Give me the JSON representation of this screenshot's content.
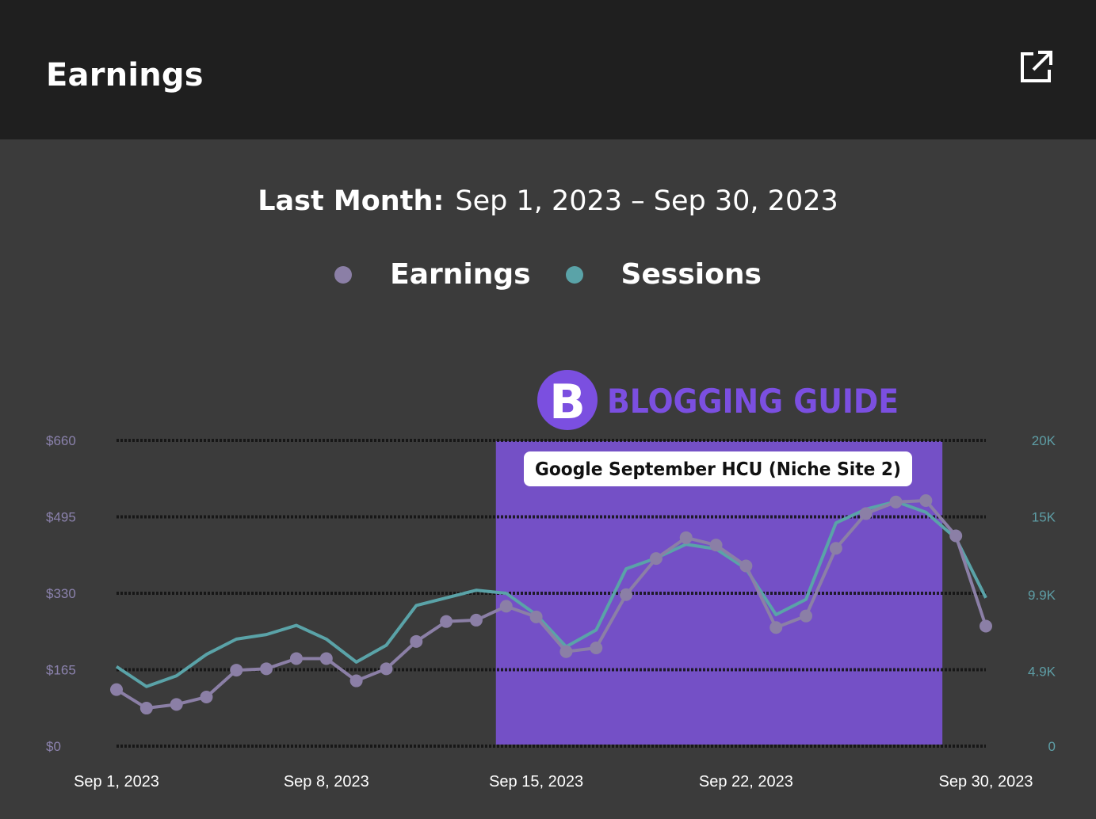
{
  "header": {
    "title": "Earnings"
  },
  "period": {
    "label": "Last Month:",
    "range": "Sep 1, 2023 – Sep 30, 2023"
  },
  "legend": [
    {
      "name": "Earnings",
      "color": "#8b7fa6"
    },
    {
      "name": "Sessions",
      "color": "#5aa3a8"
    }
  ],
  "watermark": {
    "letter": "B",
    "text": "BLOGGING GUIDE",
    "color": "#7b4fe0"
  },
  "colors": {
    "highlight": "#7450c6",
    "grid": "#111111",
    "left_axis": "#8b82ad",
    "right_axis": "#5e9ea6"
  },
  "chart_data": {
    "type": "line",
    "x": [
      "Sep 1",
      "Sep 2",
      "Sep 3",
      "Sep 4",
      "Sep 5",
      "Sep 6",
      "Sep 7",
      "Sep 8",
      "Sep 9",
      "Sep 10",
      "Sep 11",
      "Sep 12",
      "Sep 13",
      "Sep 14",
      "Sep 15",
      "Sep 16",
      "Sep 17",
      "Sep 18",
      "Sep 19",
      "Sep 20",
      "Sep 21",
      "Sep 22",
      "Sep 23",
      "Sep 24",
      "Sep 25",
      "Sep 26",
      "Sep 27",
      "Sep 28",
      "Sep 29",
      "Sep 30"
    ],
    "x_tick_labels": [
      "Sep 1, 2023",
      "Sep 8, 2023",
      "Sep 15, 2023",
      "Sep 22, 2023",
      "Sep 30, 2023"
    ],
    "x_tick_index": [
      0,
      7,
      14,
      21,
      29
    ],
    "y_left": {
      "ticks": [
        "$0",
        "$165",
        "$330",
        "$495",
        "$660"
      ],
      "values": [
        0,
        165,
        330,
        495,
        660
      ],
      "range": [
        0,
        660
      ]
    },
    "y_right": {
      "ticks": [
        "0",
        "4.9K",
        "9.9K",
        "15K",
        "20K"
      ],
      "values": [
        0,
        4900,
        9900,
        15000,
        20000
      ],
      "range": [
        0,
        20000
      ]
    },
    "series": [
      {
        "name": "Earnings",
        "axis": "left",
        "markers": true,
        "values": [
          122,
          82,
          90,
          106,
          164,
          167,
          189,
          189,
          141,
          167,
          226,
          269,
          272,
          302,
          279,
          204,
          212,
          327,
          405,
          450,
          434,
          389,
          256,
          281,
          427,
          502,
          527,
          530,
          454,
          259
        ]
      },
      {
        "name": "Sessions",
        "axis": "right",
        "markers": false,
        "values": [
          5200,
          3900,
          4600,
          6000,
          7000,
          7300,
          7900,
          7000,
          5500,
          6600,
          9200,
          9700,
          10200,
          10000,
          8600,
          6500,
          7600,
          11600,
          12300,
          13200,
          12900,
          11600,
          8600,
          9600,
          14600,
          15500,
          16000,
          15300,
          13600,
          9700
        ]
      }
    ],
    "annotation": {
      "label": "Google September HCU (Niche Site 2)",
      "from": "Sep 14",
      "to": "Sep 29"
    },
    "grid": true,
    "legend_position": "top-center"
  }
}
